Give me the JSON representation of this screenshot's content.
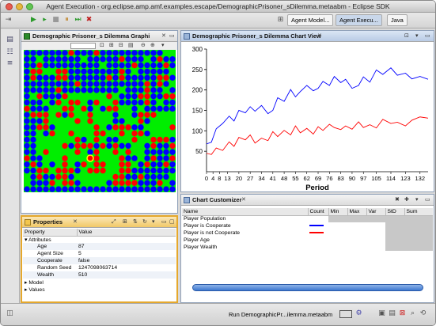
{
  "window": {
    "title": "Agent Execution - org.eclipse.amp.amf.examples.escape/DemographicPrisoner_sDilemma.metaabm - Eclipse SDK"
  },
  "perspectives": [
    {
      "label": "Agent Model..."
    },
    {
      "label": "Agent Execu..."
    },
    {
      "label": "Java"
    }
  ],
  "grid_view": {
    "tab": "Demographic Prisoner_s Dilemma Graphi"
  },
  "chart_view": {
    "tab": "Demographic Prisoner_s Dilemma Chart View"
  },
  "chart_data": {
    "type": "line",
    "title": "",
    "xlabel": "Period",
    "ylabel": "",
    "ylim": [
      0,
      300
    ],
    "yticks": [
      50,
      100,
      150,
      200,
      250,
      300
    ],
    "xticks": [
      "0",
      "4",
      "8",
      "13",
      "20",
      "27",
      "34",
      "41",
      "48",
      "55",
      "62",
      "69",
      "76",
      "83",
      "90",
      "97",
      "105",
      "114",
      "123",
      "132"
    ],
    "series": [
      {
        "name": "Player is Cooperate",
        "color": "#0000ff",
        "x": [
          0,
          3,
          6,
          10,
          14,
          17,
          20,
          24,
          27,
          30,
          34,
          38,
          41,
          44,
          48,
          52,
          55,
          58,
          62,
          66,
          69,
          72,
          76,
          79,
          83,
          86,
          90,
          94,
          97,
          101,
          105,
          109,
          114,
          118,
          123,
          127,
          132,
          137
        ],
        "values": [
          68,
          72,
          105,
          118,
          136,
          124,
          150,
          144,
          159,
          148,
          162,
          142,
          150,
          181,
          172,
          201,
          183,
          196,
          211,
          198,
          204,
          221,
          211,
          233,
          218,
          226,
          204,
          211,
          232,
          219,
          249,
          238,
          254,
          236,
          241,
          227,
          233,
          226
        ]
      },
      {
        "name": "Player is not Cooperate",
        "color": "#ff0000",
        "x": [
          0,
          3,
          6,
          10,
          14,
          17,
          20,
          24,
          27,
          30,
          34,
          38,
          41,
          44,
          48,
          52,
          55,
          58,
          62,
          66,
          69,
          72,
          76,
          79,
          83,
          86,
          90,
          94,
          97,
          101,
          105,
          109,
          114,
          118,
          123,
          127,
          132,
          137
        ],
        "values": [
          45,
          42,
          58,
          52,
          73,
          62,
          84,
          78,
          90,
          70,
          82,
          76,
          98,
          86,
          101,
          90,
          112,
          95,
          106,
          92,
          110,
          101,
          116,
          108,
          103,
          112,
          104,
          122,
          108,
          115,
          107,
          128,
          118,
          121,
          112,
          126,
          134,
          131
        ]
      }
    ]
  },
  "customizer": {
    "tab": "Chart Customizer",
    "columns": [
      "Name",
      "Count",
      "Min",
      "Max",
      "Var",
      "StD",
      "Sum"
    ],
    "rows": [
      {
        "name": "Player Population",
        "line": ""
      },
      {
        "name": "Player is Cooperate",
        "line": "#0000ff"
      },
      {
        "name": "Player is not Cooperate",
        "line": "#ff0000"
      },
      {
        "name": "Player Age",
        "line": ""
      },
      {
        "name": "Player Wealth",
        "line": ""
      }
    ]
  },
  "properties": {
    "tab": "Properties",
    "columns": [
      "Property",
      "Value"
    ],
    "attributes_label": "Attributes",
    "rows": [
      {
        "name": "Age",
        "value": "87"
      },
      {
        "name": "Agent Size",
        "value": "5"
      },
      {
        "name": "Cooperate",
        "value": "false"
      },
      {
        "name": "Random Seed",
        "value": "1247098063714"
      },
      {
        "name": "Wealth",
        "value": "510"
      }
    ],
    "model_label": "Model",
    "values_label": "Values"
  },
  "status": {
    "text": "Run DemographicPr...ilemma.metaabm"
  },
  "colors": {
    "cooperate": "#0000ff",
    "defect": "#ff0000",
    "empty": "#00ee00"
  }
}
